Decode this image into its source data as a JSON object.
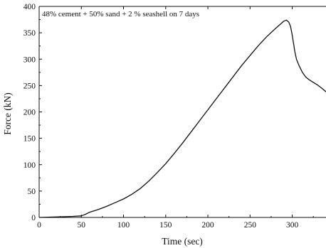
{
  "chart_data": {
    "type": "line",
    "annotation": "48% cement + 50% sand + 2 % seashell on 7 days",
    "xlabel": "Time (sec)",
    "ylabel": "Force (kN)",
    "xlim": [
      0,
      340
    ],
    "ylim": [
      0,
      400
    ],
    "xticks": [
      0,
      50,
      100,
      150,
      200,
      250,
      300
    ],
    "yticks": [
      0,
      50,
      100,
      150,
      200,
      250,
      300,
      350,
      400
    ],
    "grid": false,
    "series": [
      {
        "color": "#111111",
        "x": [
          0,
          10,
          20,
          30,
          40,
          45,
          50,
          55,
          60,
          70,
          80,
          90,
          100,
          110,
          120,
          130,
          140,
          150,
          160,
          170,
          180,
          190,
          200,
          210,
          220,
          230,
          240,
          250,
          260,
          270,
          280,
          285,
          290,
          293,
          296,
          298,
          300,
          301,
          302,
          303,
          305,
          308,
          312,
          316,
          320,
          325,
          330,
          335,
          340
        ],
        "y": [
          0,
          0.5,
          1,
          1.5,
          2,
          2.5,
          3,
          6,
          10,
          15,
          21,
          28,
          35,
          44,
          55,
          69,
          85,
          102,
          121,
          141,
          162,
          183,
          204,
          225,
          246,
          267,
          288,
          307,
          326,
          343,
          358,
          365,
          372,
          374,
          370,
          362,
          345,
          335,
          325,
          315,
          300,
          288,
          275,
          266,
          261,
          256,
          251,
          245,
          238
        ]
      }
    ]
  }
}
